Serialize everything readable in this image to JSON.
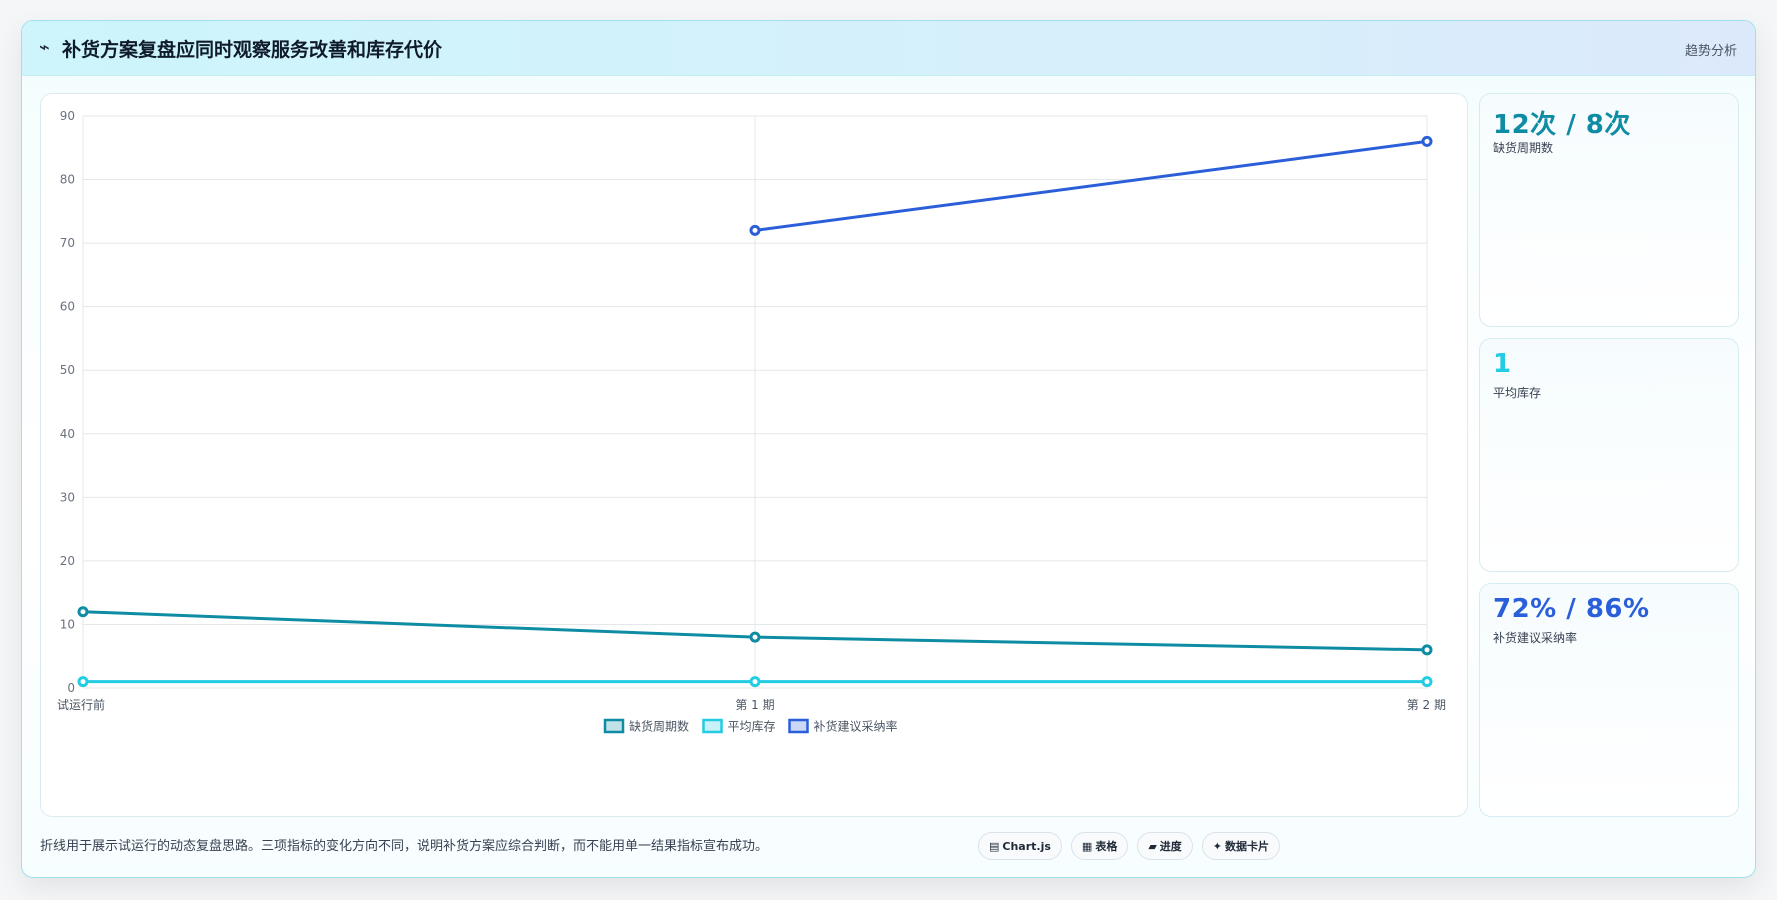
{
  "header": {
    "icon": "chart-trend-icon",
    "icon_glyph": "⌁",
    "title": "补货方案复盘应同时观察服务改善和库存代价",
    "right_label": "趋势分析"
  },
  "kpis": [
    {
      "value": "12次 / 8次",
      "label": "缺货周期数",
      "color": "#0e8ca4"
    },
    {
      "value": "1",
      "label": "平均库存",
      "color": "#22cce3"
    },
    {
      "value": "72% / 86%",
      "label": "补货建议采纳率",
      "color": "#2b5fd9"
    }
  ],
  "footer": {
    "note": "折线用于展示试运行的动态复盘思路。三项指标的变化方向不同，说明补货方案应综合判断，而不能用单一结果指标宣布成功。"
  },
  "chips": [
    {
      "icon": "chart-icon",
      "glyph": "▤",
      "label": "Chart.js"
    },
    {
      "icon": "table-icon",
      "glyph": "▦",
      "label": "表格"
    },
    {
      "icon": "progress-icon",
      "glyph": "▰",
      "label": "进度"
    },
    {
      "icon": "card-icon",
      "glyph": "✦",
      "label": "数据卡片"
    }
  ],
  "chart_data": {
    "type": "line",
    "categories": [
      "试运行前",
      "第 1 期",
      "第 2 期"
    ],
    "ylim": [
      0,
      90
    ],
    "yticks": [
      0,
      10,
      20,
      30,
      40,
      50,
      60,
      70,
      80,
      90
    ],
    "grid": true,
    "legend_position": "bottom",
    "series": [
      {
        "name": "缺货周期数",
        "values": [
          12,
          8,
          6
        ],
        "color": "#0e8ca4"
      },
      {
        "name": "平均库存",
        "values": [
          1,
          1,
          1
        ],
        "color": "#22cce3"
      },
      {
        "name": "补货建议采纳率",
        "values": [
          null,
          72,
          86
        ],
        "color": "#2b5fd9"
      }
    ]
  }
}
